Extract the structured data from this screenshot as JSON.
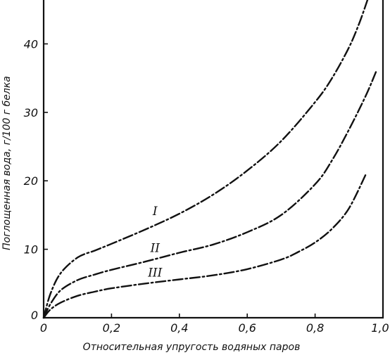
{
  "chart_data": {
    "type": "line",
    "title": "",
    "xlabel": "Относительная упругость водяных паров",
    "ylabel": "Поглощенная вода, г/100 г белка",
    "xlim": [
      0,
      1.0
    ],
    "ylim": [
      0,
      46
    ],
    "x_ticks": [
      "0",
      "0,2",
      "0,4",
      "0,6",
      "0,8",
      "1,0"
    ],
    "y_ticks": [
      "0",
      "10",
      "20",
      "30",
      "40"
    ],
    "grid": false,
    "series": [
      {
        "name": "I",
        "x": [
          0,
          0.02,
          0.05,
          0.1,
          0.15,
          0.2,
          0.3,
          0.4,
          0.5,
          0.6,
          0.7,
          0.8,
          0.85,
          0.9,
          0.93,
          0.955
        ],
        "y": [
          0,
          3.5,
          6.5,
          8.8,
          9.8,
          10.8,
          12.9,
          15.2,
          18.0,
          21.5,
          25.8,
          31.5,
          35.0,
          39.5,
          43.0,
          46.5
        ]
      },
      {
        "name": "II",
        "x": [
          0,
          0.02,
          0.05,
          0.1,
          0.15,
          0.2,
          0.3,
          0.4,
          0.5,
          0.6,
          0.7,
          0.8,
          0.85,
          0.9,
          0.95,
          0.98
        ],
        "y": [
          0,
          2.0,
          4.0,
          5.5,
          6.3,
          7.0,
          8.2,
          9.5,
          10.7,
          12.5,
          15.0,
          19.5,
          23.0,
          27.5,
          32.5,
          36.0
        ]
      },
      {
        "name": "III",
        "x": [
          0,
          0.02,
          0.05,
          0.1,
          0.15,
          0.2,
          0.3,
          0.4,
          0.5,
          0.6,
          0.7,
          0.75,
          0.8,
          0.85,
          0.9,
          0.95
        ],
        "y": [
          0,
          1.2,
          2.2,
          3.2,
          3.8,
          4.3,
          5.0,
          5.6,
          6.2,
          7.1,
          8.5,
          9.6,
          11.0,
          13.0,
          16.0,
          21.0
        ]
      }
    ],
    "annotations": [
      {
        "text": "I",
        "series": "I",
        "x": 0.345,
        "y": 15.0
      },
      {
        "text": "II",
        "series": "II",
        "x": 0.345,
        "y": 9.6
      },
      {
        "text": "III",
        "series": "III",
        "x": 0.345,
        "y": 6.0
      }
    ]
  }
}
